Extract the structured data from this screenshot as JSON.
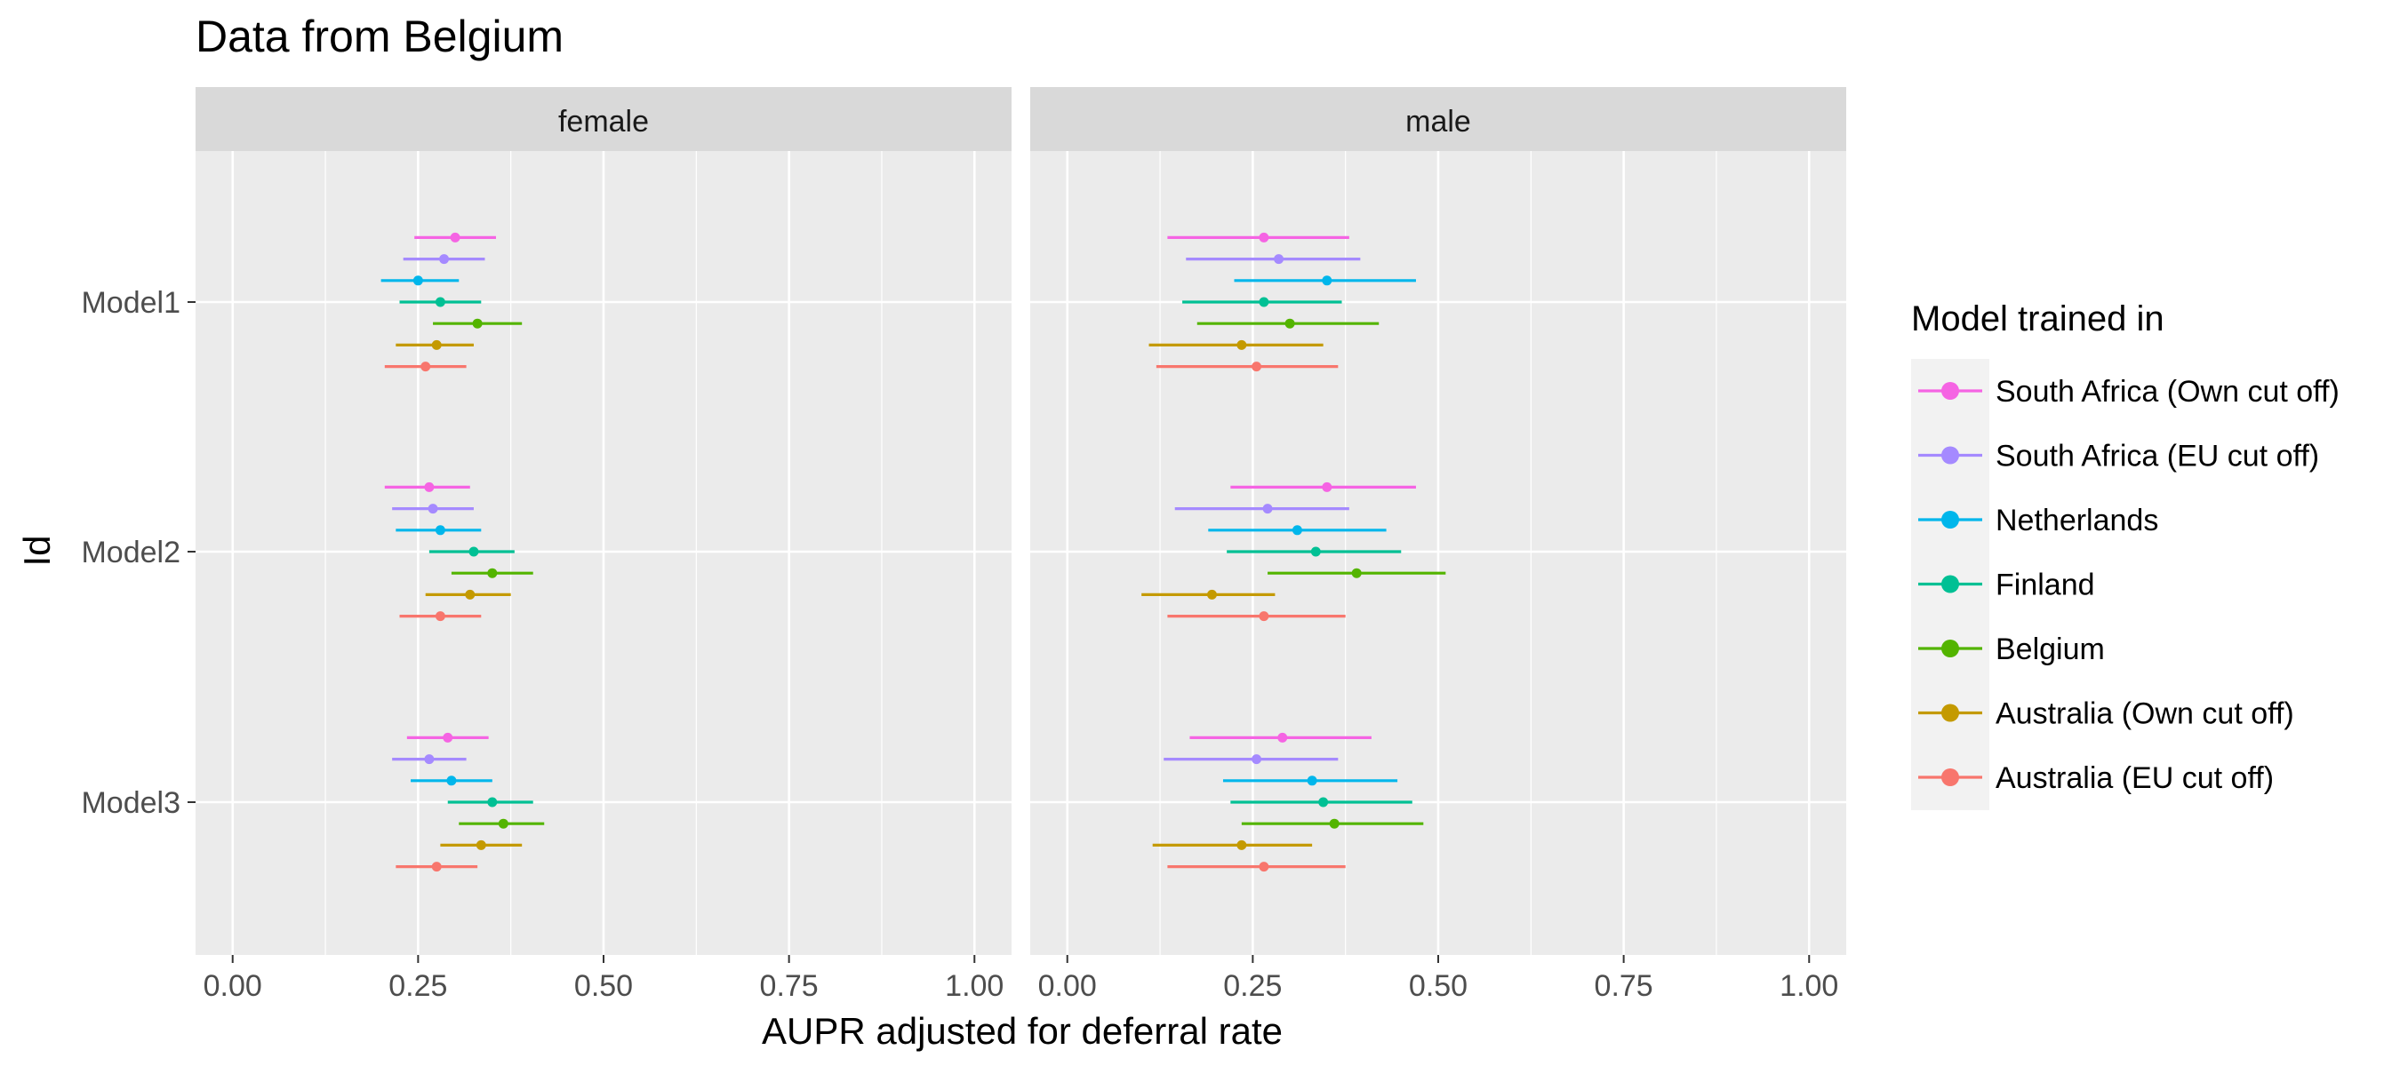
{
  "chart_data": {
    "type": "forest",
    "title": "Data from Belgium",
    "xlabel": "AUPR adjusted for deferral rate",
    "ylabel": "Id",
    "xlim": [
      -0.05,
      1.05
    ],
    "x_ticks": [
      0.0,
      0.25,
      0.5,
      0.75,
      1.0
    ],
    "x_tick_labels": [
      "0.00",
      "0.25",
      "0.50",
      "0.75",
      "1.00"
    ],
    "categories": [
      "Model1",
      "Model2",
      "Model3"
    ],
    "facets": [
      "female",
      "male"
    ],
    "grid": true,
    "legend": {
      "title": "Model trained in",
      "position": "right",
      "entries": [
        {
          "name": "South Africa (Own cut off)",
          "color": "#F564E3"
        },
        {
          "name": "South Africa (EU cut off)",
          "color": "#A58AFF"
        },
        {
          "name": "Netherlands",
          "color": "#00B6EB"
        },
        {
          "name": "Finland",
          "color": "#00C094"
        },
        {
          "name": "Belgium",
          "color": "#53B400"
        },
        {
          "name": "Australia (Own cut off)",
          "color": "#C49A00"
        },
        {
          "name": "Australia (EU cut off)",
          "color": "#F8766D"
        }
      ]
    },
    "series": [
      {
        "name": "South Africa (Own cut off)",
        "color": "#F564E3",
        "female": [
          {
            "est": 0.3,
            "lo": 0.245,
            "hi": 0.355
          },
          {
            "est": 0.265,
            "lo": 0.205,
            "hi": 0.32
          },
          {
            "est": 0.29,
            "lo": 0.235,
            "hi": 0.345
          }
        ],
        "male": [
          {
            "est": 0.265,
            "lo": 0.135,
            "hi": 0.38
          },
          {
            "est": 0.35,
            "lo": 0.22,
            "hi": 0.47
          },
          {
            "est": 0.29,
            "lo": 0.165,
            "hi": 0.41
          }
        ]
      },
      {
        "name": "South Africa (EU cut off)",
        "color": "#A58AFF",
        "female": [
          {
            "est": 0.285,
            "lo": 0.23,
            "hi": 0.34
          },
          {
            "est": 0.27,
            "lo": 0.215,
            "hi": 0.325
          },
          {
            "est": 0.265,
            "lo": 0.215,
            "hi": 0.315
          }
        ],
        "male": [
          {
            "est": 0.285,
            "lo": 0.16,
            "hi": 0.395
          },
          {
            "est": 0.27,
            "lo": 0.145,
            "hi": 0.38
          },
          {
            "est": 0.255,
            "lo": 0.13,
            "hi": 0.365
          }
        ]
      },
      {
        "name": "Netherlands",
        "color": "#00B6EB",
        "female": [
          {
            "est": 0.25,
            "lo": 0.2,
            "hi": 0.305
          },
          {
            "est": 0.28,
            "lo": 0.22,
            "hi": 0.335
          },
          {
            "est": 0.295,
            "lo": 0.24,
            "hi": 0.35
          }
        ],
        "male": [
          {
            "est": 0.35,
            "lo": 0.225,
            "hi": 0.47
          },
          {
            "est": 0.31,
            "lo": 0.19,
            "hi": 0.43
          },
          {
            "est": 0.33,
            "lo": 0.21,
            "hi": 0.445
          }
        ]
      },
      {
        "name": "Finland",
        "color": "#00C094",
        "female": [
          {
            "est": 0.28,
            "lo": 0.225,
            "hi": 0.335
          },
          {
            "est": 0.325,
            "lo": 0.265,
            "hi": 0.38
          },
          {
            "est": 0.35,
            "lo": 0.29,
            "hi": 0.405
          }
        ],
        "male": [
          {
            "est": 0.265,
            "lo": 0.155,
            "hi": 0.37
          },
          {
            "est": 0.335,
            "lo": 0.215,
            "hi": 0.45
          },
          {
            "est": 0.345,
            "lo": 0.22,
            "hi": 0.465
          }
        ]
      },
      {
        "name": "Belgium",
        "color": "#53B400",
        "female": [
          {
            "est": 0.33,
            "lo": 0.27,
            "hi": 0.39
          },
          {
            "est": 0.35,
            "lo": 0.295,
            "hi": 0.405
          },
          {
            "est": 0.365,
            "lo": 0.305,
            "hi": 0.42
          }
        ],
        "male": [
          {
            "est": 0.3,
            "lo": 0.175,
            "hi": 0.42
          },
          {
            "est": 0.39,
            "lo": 0.27,
            "hi": 0.51
          },
          {
            "est": 0.36,
            "lo": 0.235,
            "hi": 0.48
          }
        ]
      },
      {
        "name": "Australia (Own cut off)",
        "color": "#C49A00",
        "female": [
          {
            "est": 0.275,
            "lo": 0.22,
            "hi": 0.325
          },
          {
            "est": 0.32,
            "lo": 0.26,
            "hi": 0.375
          },
          {
            "est": 0.335,
            "lo": 0.28,
            "hi": 0.39
          }
        ],
        "male": [
          {
            "est": 0.235,
            "lo": 0.11,
            "hi": 0.345
          },
          {
            "est": 0.195,
            "lo": 0.1,
            "hi": 0.28
          },
          {
            "est": 0.235,
            "lo": 0.115,
            "hi": 0.33
          }
        ]
      },
      {
        "name": "Australia (EU cut off)",
        "color": "#F8766D",
        "female": [
          {
            "est": 0.26,
            "lo": 0.205,
            "hi": 0.315
          },
          {
            "est": 0.28,
            "lo": 0.225,
            "hi": 0.335
          },
          {
            "est": 0.275,
            "lo": 0.22,
            "hi": 0.33
          }
        ],
        "male": [
          {
            "est": 0.255,
            "lo": 0.12,
            "hi": 0.365
          },
          {
            "est": 0.265,
            "lo": 0.135,
            "hi": 0.375
          },
          {
            "est": 0.265,
            "lo": 0.135,
            "hi": 0.375
          }
        ]
      }
    ]
  }
}
